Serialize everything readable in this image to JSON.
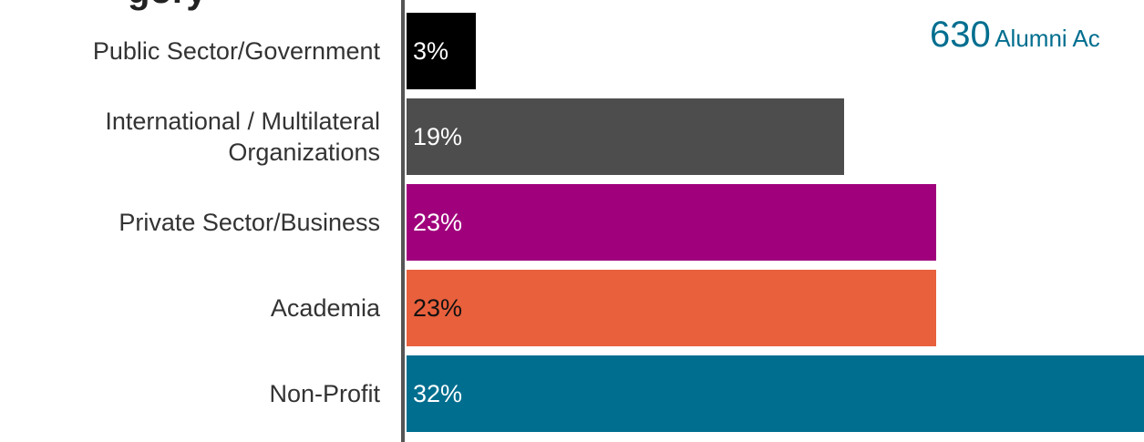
{
  "chart_data": {
    "type": "bar",
    "orientation": "horizontal",
    "title_fragment": "gory",
    "categories": [
      "Public Sector/Government",
      "International / Multilateral Organizations",
      "Private Sector/Business",
      "Academia",
      "Non-Profit"
    ],
    "values": [
      3,
      19,
      23,
      23,
      32
    ],
    "value_labels": [
      "3%",
      "19%",
      "23%",
      "23%",
      "32%"
    ],
    "unit": "%",
    "xlim": [
      0,
      32
    ],
    "grid": false,
    "legend": "none",
    "bar_colors": [
      "#000000",
      "#4d4d4d",
      "#a0007c",
      "#e8603c",
      "#006e8f"
    ],
    "label_colors": [
      "#ffffff",
      "#ffffff",
      "#ffffff",
      "#111111",
      "#ffffff"
    ],
    "annotation": {
      "number": "630",
      "text": "Alumni Ac"
    }
  }
}
